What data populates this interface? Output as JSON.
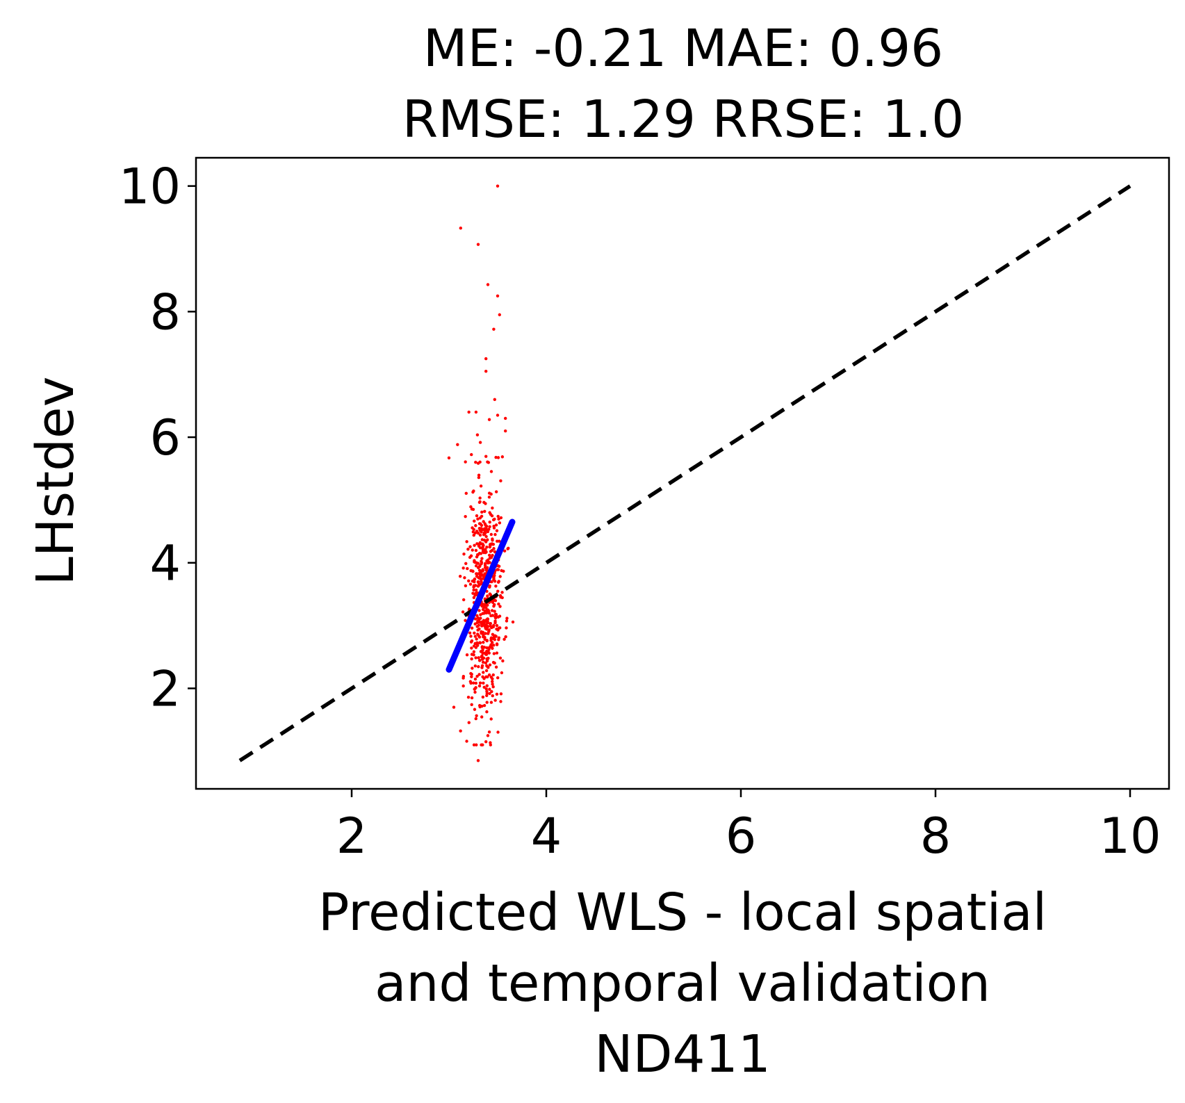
{
  "chart_data": {
    "type": "scatter",
    "title": [
      "ME: -0.21 MAE: 0.96",
      "RMSE: 1.29 RRSE: 1.0"
    ],
    "xlabel": [
      "Predicted WLS - local spatial",
      "and temporal validation",
      "ND411"
    ],
    "ylabel": "LHstdev",
    "xlim": [
      0.4,
      10.4
    ],
    "ylim": [
      0.4,
      10.45
    ],
    "xticks": [
      2,
      4,
      6,
      8,
      10
    ],
    "yticks": [
      2,
      4,
      6,
      8,
      10
    ],
    "grid": false,
    "legend": "none",
    "colors": {
      "points": "#ff0000",
      "fit_line": "#0000ff",
      "identity_line": "#000000"
    },
    "identity_line": {
      "x": [
        0.85,
        10.0
      ],
      "y": [
        0.85,
        10.0
      ],
      "style": "dashed"
    },
    "fit_line": {
      "x": [
        3.0,
        3.65
      ],
      "y": [
        2.3,
        4.65
      ]
    },
    "outliers": [
      {
        "x": 3.5,
        "y": 10.0
      },
      {
        "x": 3.12,
        "y": 9.33
      },
      {
        "x": 3.3,
        "y": 9.07
      },
      {
        "x": 3.4,
        "y": 8.43
      },
      {
        "x": 3.5,
        "y": 8.25
      },
      {
        "x": 3.52,
        "y": 7.95
      },
      {
        "x": 3.46,
        "y": 7.72
      },
      {
        "x": 3.38,
        "y": 7.25
      },
      {
        "x": 3.38,
        "y": 7.05
      },
      {
        "x": 3.0,
        "y": 5.67
      },
      {
        "x": 3.05,
        "y": 1.7
      },
      {
        "x": 3.3,
        "y": 0.85
      },
      {
        "x": 3.38,
        "y": 1.15
      },
      {
        "x": 3.5,
        "y": 6.35
      },
      {
        "x": 3.58,
        "y": 6.3
      },
      {
        "x": 3.58,
        "y": 6.1
      },
      {
        "x": 3.47,
        "y": 6.6
      }
    ],
    "cloud": {
      "n": 650,
      "x_mean": 3.36,
      "x_sd": 0.09,
      "y_mean": 3.45,
      "y_sd": 0.95,
      "y_range": [
        1.1,
        6.4
      ],
      "seed": 411
    }
  }
}
